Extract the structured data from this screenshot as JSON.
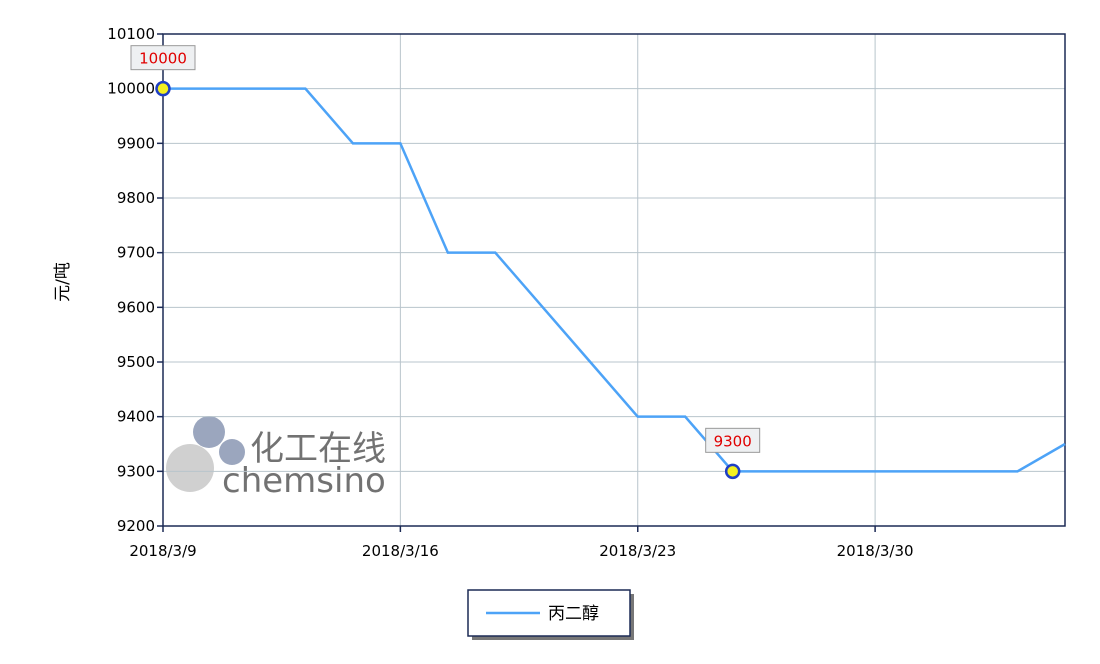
{
  "chart_data": {
    "type": "line",
    "y_label": "元/吨",
    "categories": [
      "2018/3/9",
      null,
      null,
      null,
      null,
      "2018/3/16",
      null,
      null,
      null,
      null,
      "2018/3/23",
      null,
      null,
      null,
      null,
      "2018/3/30",
      null,
      null,
      null,
      null
    ],
    "series": [
      {
        "name": "丙二醇",
        "color": "#4da3f7",
        "values": [
          10000,
          10000,
          10000,
          10000,
          9900,
          9900,
          9700,
          9700,
          9600,
          9500,
          9400,
          9400,
          9300,
          9300,
          9300,
          9300,
          9300,
          9300,
          9300,
          9350
        ],
        "value_labels": [
          "10000",
          null,
          null,
          null,
          null,
          null,
          null,
          null,
          null,
          null,
          null,
          null,
          "9300",
          null,
          null,
          null,
          null,
          null,
          null,
          null
        ]
      }
    ],
    "ylim": [
      9200,
      10100
    ],
    "yticks": [
      9200,
      9300,
      9400,
      9500,
      9600,
      9700,
      9800,
      9900,
      10000,
      10100
    ],
    "grid": true,
    "legend": "bottom",
    "watermark": {
      "cn": "化工在线",
      "en": "chemsino"
    }
  }
}
